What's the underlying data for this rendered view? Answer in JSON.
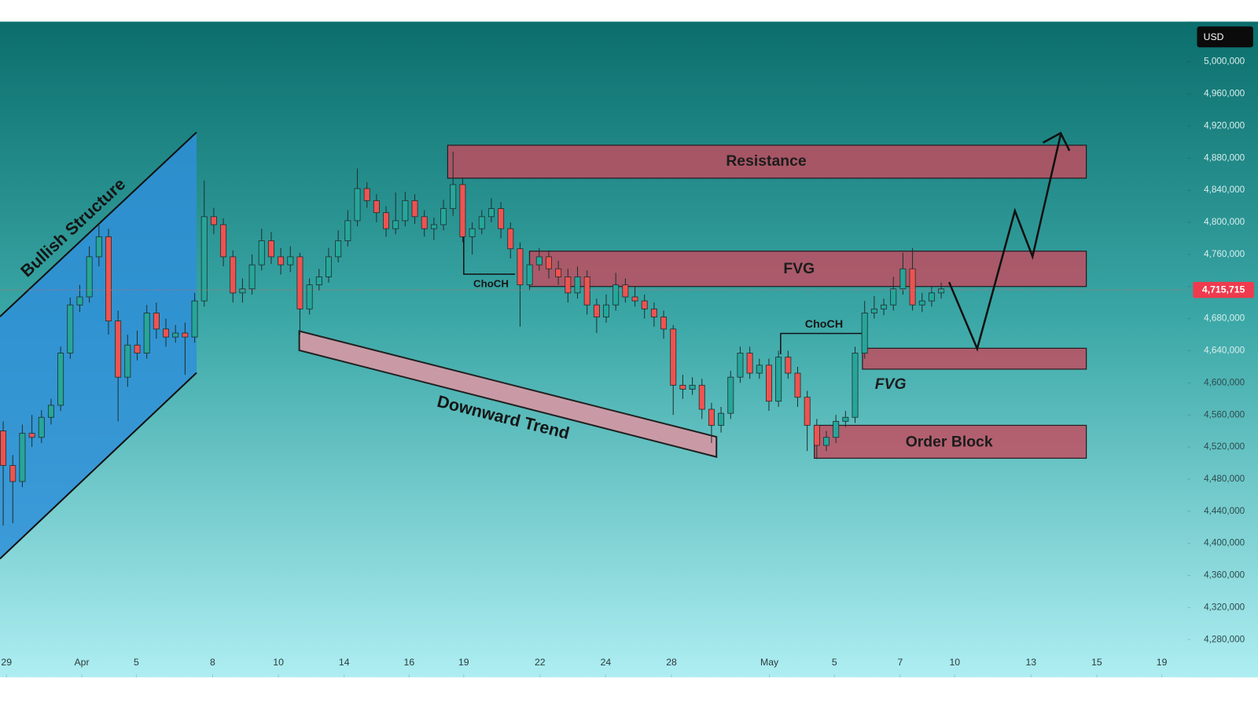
{
  "chart_data": {
    "type": "candlestick",
    "currency": "USD",
    "up_color": "#26a69a",
    "down_color": "#ef5350",
    "open": [
      4540000,
      4497000,
      4477000,
      4537000,
      4532000,
      4557000,
      4572000,
      4637000,
      4697000,
      4707000,
      4757000,
      4782000,
      4677000,
      4607000,
      4647000,
      4637000,
      4687000,
      4667000,
      4657000,
      4662000,
      4657000,
      4702000,
      4807000,
      4797000,
      4757000,
      4712000,
      4717000,
      4747000,
      4777000,
      4757000,
      4747000,
      4757000,
      4692000,
      4722000,
      4732000,
      4757000,
      4777000,
      4802000,
      4842000,
      4827000,
      4812000,
      4792000,
      4802000,
      4827000,
      4807000,
      4792000,
      4797000,
      4817000,
      4847000,
      4782000,
      4792000,
      4807000,
      4817000,
      4792000,
      4767000,
      4722000,
      4747000,
      4757000,
      4742000,
      4732000,
      4712000,
      4732000,
      4697000,
      4682000,
      4697000,
      4722000,
      4707000,
      4702000,
      4692000,
      4682000,
      4667000,
      4597000,
      4592000,
      4597000,
      4567000,
      4547000,
      4562000,
      4607000,
      4637000,
      4612000,
      4622000,
      4577000,
      4632000,
      4612000,
      4582000,
      4547000,
      4522000,
      4532000,
      4552000,
      4557000,
      4637000,
      4687000,
      4692000,
      4697000,
      4717000,
      4742000,
      4697000,
      4702000,
      4712000
    ],
    "high": [
      4552000,
      4510000,
      4548000,
      4560000,
      4566000,
      4580000,
      4645000,
      4706000,
      4722000,
      4770000,
      4797000,
      4792000,
      4690000,
      4660000,
      4665000,
      4697000,
      4700000,
      4680000,
      4672000,
      4675000,
      4712000,
      4852000,
      4818000,
      4805000,
      4765000,
      4730000,
      4760000,
      4792000,
      4788000,
      4768000,
      4770000,
      4762000,
      4730000,
      4742000,
      4768000,
      4790000,
      4815000,
      4867000,
      4850000,
      4835000,
      4820000,
      4837000,
      4838000,
      4835000,
      4815000,
      4806000,
      4828000,
      4888000,
      4855000,
      4800000,
      4815000,
      4830000,
      4825000,
      4800000,
      4775000,
      4760000,
      4768000,
      4765000,
      4752000,
      4742000,
      4745000,
      4740000,
      4705000,
      4710000,
      4737000,
      4730000,
      4720000,
      4710000,
      4700000,
      4690000,
      4672000,
      4610000,
      4607000,
      4605000,
      4575000,
      4570000,
      4615000,
      4645000,
      4645000,
      4630000,
      4630000,
      4640000,
      4640000,
      4620000,
      4590000,
      4555000,
      4540000,
      4560000,
      4565000,
      4645000,
      4702000,
      4708000,
      4705000,
      4732000,
      4762000,
      4768000,
      4712000,
      4720000,
      4725000
    ],
    "low": [
      4422000,
      4425000,
      4470000,
      4520000,
      4525000,
      4548000,
      4565000,
      4630000,
      4688000,
      4700000,
      4745000,
      4660000,
      4552000,
      4595000,
      4628000,
      4630000,
      4655000,
      4645000,
      4650000,
      4610000,
      4650000,
      4695000,
      4785000,
      4745000,
      4700000,
      4700000,
      4710000,
      4740000,
      4748000,
      4735000,
      4738000,
      4660000,
      4685000,
      4715000,
      4725000,
      4750000,
      4770000,
      4795000,
      4818000,
      4800000,
      4782000,
      4785000,
      4795000,
      4798000,
      4782000,
      4778000,
      4790000,
      4808000,
      4775000,
      4760000,
      4785000,
      4800000,
      4780000,
      4755000,
      4670000,
      4715000,
      4740000,
      4730000,
      4722000,
      4700000,
      4705000,
      4685000,
      4662000,
      4675000,
      4690000,
      4700000,
      4695000,
      4680000,
      4670000,
      4655000,
      4560000,
      4580000,
      4585000,
      4555000,
      4525000,
      4538000,
      4555000,
      4600000,
      4605000,
      4605000,
      4565000,
      4570000,
      4605000,
      4570000,
      4515000,
      4505000,
      4515000,
      4525000,
      4545000,
      4550000,
      4630000,
      4680000,
      4684000,
      4690000,
      4710000,
      4690000,
      4688000,
      4695000,
      4705000
    ],
    "close": [
      4497000,
      4477000,
      4537000,
      4532000,
      4557000,
      4572000,
      4637000,
      4697000,
      4707000,
      4757000,
      4782000,
      4677000,
      4607000,
      4647000,
      4637000,
      4687000,
      4667000,
      4657000,
      4662000,
      4657000,
      4702000,
      4807000,
      4797000,
      4757000,
      4712000,
      4717000,
      4747000,
      4777000,
      4757000,
      4747000,
      4757000,
      4692000,
      4722000,
      4732000,
      4757000,
      4777000,
      4802000,
      4842000,
      4827000,
      4812000,
      4792000,
      4802000,
      4827000,
      4807000,
      4792000,
      4797000,
      4817000,
      4847000,
      4782000,
      4792000,
      4807000,
      4817000,
      4792000,
      4767000,
      4722000,
      4747000,
      4757000,
      4742000,
      4732000,
      4712000,
      4732000,
      4697000,
      4682000,
      4697000,
      4722000,
      4707000,
      4702000,
      4692000,
      4682000,
      4667000,
      4597000,
      4592000,
      4597000,
      4567000,
      4547000,
      4562000,
      4607000,
      4637000,
      4612000,
      4622000,
      4577000,
      4632000,
      4612000,
      4582000,
      4547000,
      4522000,
      4532000,
      4552000,
      4557000,
      4637000,
      4687000,
      4692000,
      4697000,
      4717000,
      4742000,
      4697000,
      4702000,
      4712000,
      4717000
    ],
    "xlim": [
      -0.335,
      123.72
    ],
    "xticks": [
      {
        "value": 0.34,
        "label": "29"
      },
      {
        "value": 8.21,
        "label": "Apr"
      },
      {
        "value": 13.91,
        "label": "5"
      },
      {
        "value": 21.88,
        "label": "8"
      },
      {
        "value": 28.75,
        "label": "10"
      },
      {
        "value": 35.62,
        "label": "14"
      },
      {
        "value": 42.41,
        "label": "16"
      },
      {
        "value": 48.11,
        "label": "19"
      },
      {
        "value": 56.08,
        "label": "22"
      },
      {
        "value": 62.95,
        "label": "24"
      },
      {
        "value": 69.82,
        "label": "28"
      },
      {
        "value": 80.05,
        "label": "May"
      },
      {
        "value": 86.84,
        "label": "5"
      },
      {
        "value": 93.71,
        "label": "7"
      },
      {
        "value": 99.41,
        "label": "10"
      },
      {
        "value": 107.38,
        "label": "13"
      },
      {
        "value": 114.25,
        "label": "15"
      },
      {
        "value": 121.04,
        "label": "19"
      }
    ],
    "ylim": [
      4233000,
      5050000
    ],
    "yticks": [
      {
        "value": 4280000,
        "label": "4,280,000"
      },
      {
        "value": 4320000,
        "label": "4,320,000"
      },
      {
        "value": 4360000,
        "label": "4,360,000"
      },
      {
        "value": 4400000,
        "label": "4,400,000"
      },
      {
        "value": 4440000,
        "label": "4,440,000"
      },
      {
        "value": 4480000,
        "label": "4,480,000"
      },
      {
        "value": 4520000,
        "label": "4,520,000"
      },
      {
        "value": 4560000,
        "label": "4,560,000"
      },
      {
        "value": 4600000,
        "label": "4,600,000"
      },
      {
        "value": 4640000,
        "label": "4,640,000"
      },
      {
        "value": 4680000,
        "label": "4,680,000"
      },
      {
        "value": 4720000,
        "label": "4,720,000"
      },
      {
        "value": 4760000,
        "label": "4,760,000"
      },
      {
        "value": 4800000,
        "label": "4,800,000"
      },
      {
        "value": 4840000,
        "label": "4,840,000"
      },
      {
        "value": 4880000,
        "label": "4,880,000"
      },
      {
        "value": 4920000,
        "label": "4,920,000"
      },
      {
        "value": 4960000,
        "label": "4,960,000"
      },
      {
        "value": 5000000,
        "label": "5,000,000"
      }
    ],
    "last_price": {
      "value": 4715715,
      "label": "4,715,715"
    },
    "zones": [
      {
        "label": "Resistance",
        "low": 4855000,
        "high": 4896000
      },
      {
        "label": "FVG",
        "low": 4720000,
        "high": 4764000
      },
      {
        "label": "FVG",
        "low": 4617000,
        "high": 4643000
      },
      {
        "label": "Order Block",
        "low": 4506000,
        "high": 4547000
      }
    ],
    "channel_label": "Bullish Structure",
    "trend_label": "Downward Trend",
    "choch_labels": [
      "ChoCH",
      "ChoCH"
    ]
  }
}
